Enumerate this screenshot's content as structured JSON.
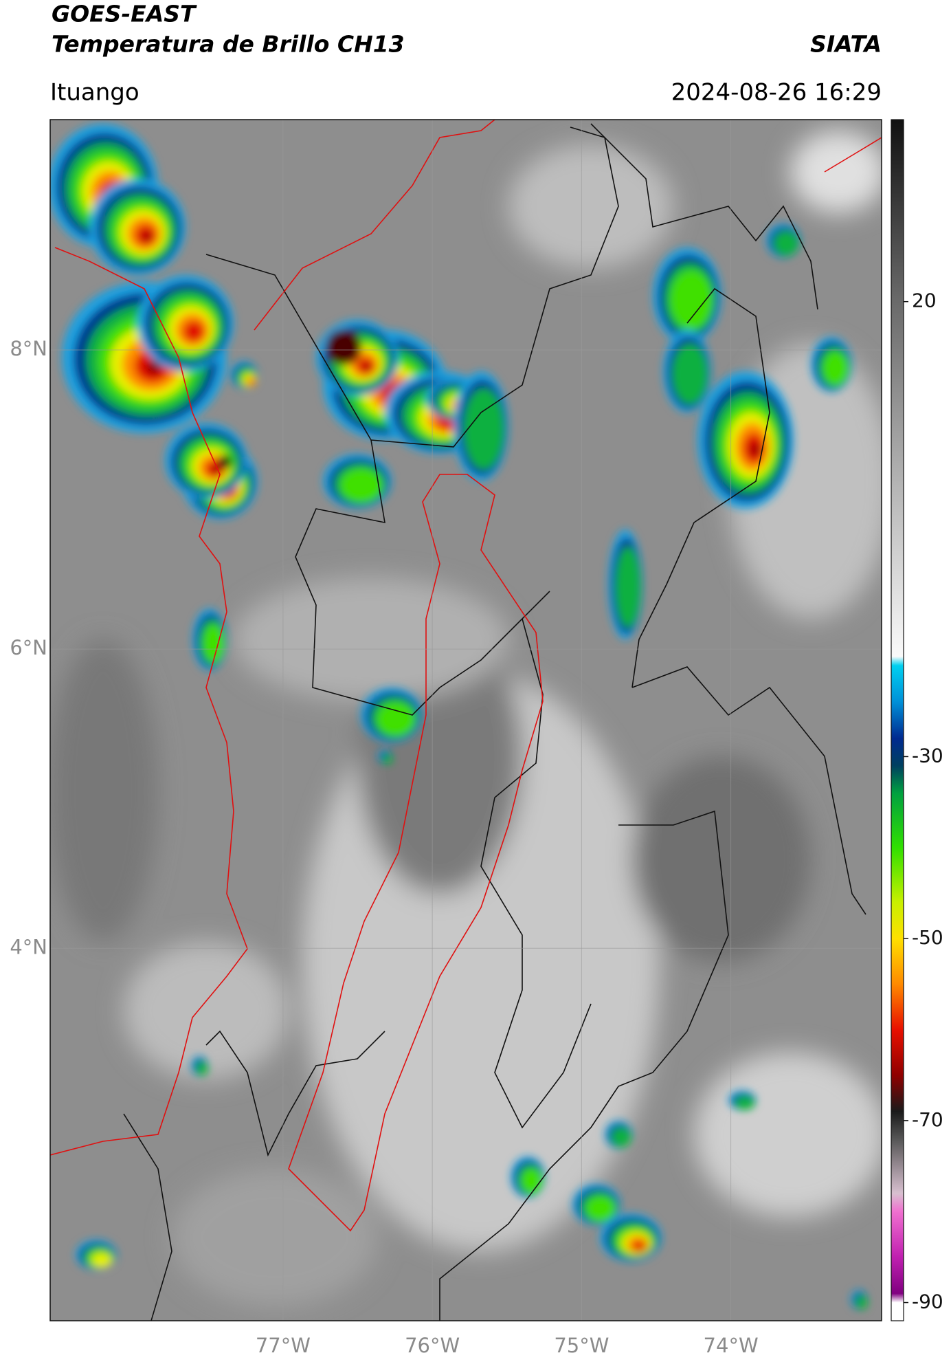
{
  "header": {
    "title": "GOES-EAST",
    "subtitle": "Temperatura de Brillo CH13",
    "source": "SIATA",
    "region": "Ituango",
    "timestamp": "2024-08-26 16:29"
  },
  "map": {
    "lon_range": [
      -78.56,
      -72.99
    ],
    "lat_range": [
      1.51,
      9.54
    ],
    "lat_ticks": [
      {
        "value": 8,
        "label": "8°N"
      },
      {
        "value": 6,
        "label": "6°N"
      },
      {
        "value": 4,
        "label": "4°N"
      }
    ],
    "lon_ticks": [
      {
        "value": -77,
        "label": "77°W"
      },
      {
        "value": -76,
        "label": "76°W"
      },
      {
        "value": -75,
        "label": "75°W"
      },
      {
        "value": -74,
        "label": "74°W"
      }
    ],
    "grid": true
  },
  "colorbar": {
    "range": [
      -92,
      40
    ],
    "ticks": [
      20,
      -30,
      -50,
      -70,
      -90
    ],
    "stops": [
      {
        "value": 40,
        "color": "#111111"
      },
      {
        "value": 20,
        "color": "#6a6a6a"
      },
      {
        "value": -19,
        "color": "#fafafa"
      },
      {
        "value": -20,
        "color": "#00d0f0"
      },
      {
        "value": -24,
        "color": "#0090d8"
      },
      {
        "value": -28,
        "color": "#002a90"
      },
      {
        "value": -31,
        "color": "#004060"
      },
      {
        "value": -34,
        "color": "#00a040"
      },
      {
        "value": -40,
        "color": "#30e000"
      },
      {
        "value": -46,
        "color": "#c8f000"
      },
      {
        "value": -50,
        "color": "#ffe000"
      },
      {
        "value": -55,
        "color": "#ff8a00"
      },
      {
        "value": -60,
        "color": "#e81000"
      },
      {
        "value": -65,
        "color": "#900000"
      },
      {
        "value": -69,
        "color": "#1a1a1a"
      },
      {
        "value": -72,
        "color": "#555555"
      },
      {
        "value": -78,
        "color": "#d8c0d0"
      },
      {
        "value": -80,
        "color": "#f070d0"
      },
      {
        "value": -85,
        "color": "#c020b0"
      },
      {
        "value": -89,
        "color": "#800080"
      },
      {
        "value": -90,
        "color": "#ffffff"
      },
      {
        "value": -92,
        "color": "#ffffff"
      }
    ]
  }
}
